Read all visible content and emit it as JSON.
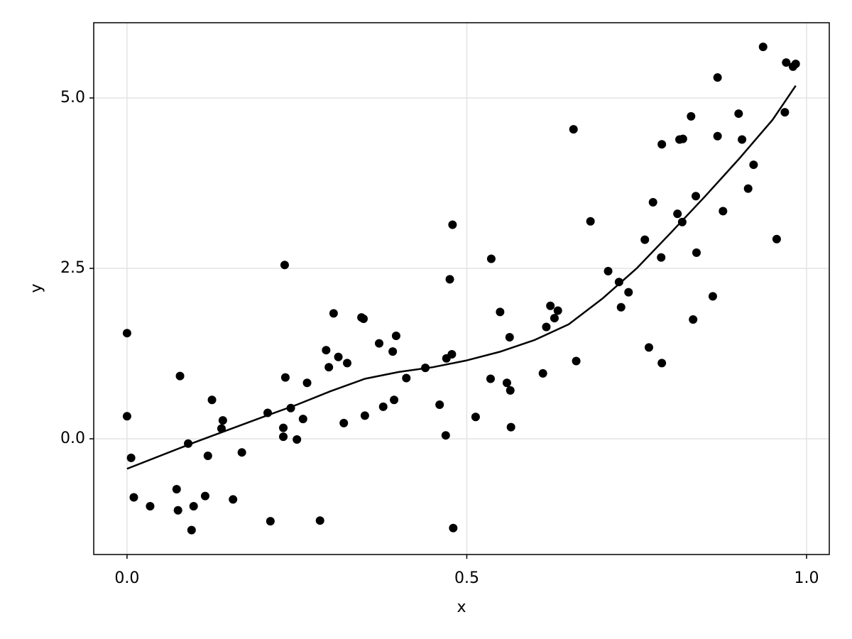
{
  "chart_data": {
    "type": "scatter",
    "x_label": "x",
    "y_label": "y",
    "xlim": [
      -0.049,
      1.0334
    ],
    "ylim": [
      -1.698,
      6.104
    ],
    "xticks": [
      {
        "value": 0,
        "label": "0.0"
      },
      0.5,
      {
        "value": 1,
        "label": "1.0"
      }
    ],
    "yticks": [
      {
        "value": 0,
        "label": "0.0"
      },
      2.5,
      {
        "value": 5,
        "label": "5.0"
      }
    ],
    "grid": true,
    "series": [
      {
        "type": "scatter",
        "color": "#000000",
        "x": [
          0,
          0,
          0.006,
          0.01,
          0.034,
          0.073,
          0.075,
          0.078,
          0.09,
          0.095,
          0.098,
          0.115,
          0.119,
          0.125,
          0.139,
          0.141,
          0.156,
          0.169,
          0.207,
          0.211,
          0.23,
          0.23,
          0.232,
          0.233,
          0.241,
          0.25,
          0.259,
          0.265,
          0.284,
          0.293,
          0.297,
          0.304,
          0.311,
          0.319,
          0.324,
          0.345,
          0.348,
          0.35,
          0.371,
          0.377,
          0.391,
          0.393,
          0.396,
          0.411,
          0.439,
          0.46,
          0.469,
          0.47,
          0.475,
          0.478,
          0.479,
          0.48,
          0.513,
          0.535,
          0.536,
          0.549,
          0.559,
          0.563,
          0.564,
          0.565,
          0.612,
          0.617,
          0.623,
          0.629,
          0.634,
          0.657,
          0.661,
          0.682,
          0.708,
          0.724,
          0.727,
          0.738,
          0.762,
          0.768,
          0.774,
          0.786,
          0.787,
          0.787,
          0.81,
          0.813,
          0.818,
          0.817,
          0.83,
          0.833,
          0.837,
          0.838,
          0.862,
          0.869,
          0.869,
          0.877,
          0.9,
          0.905,
          0.914,
          0.922,
          0.936,
          0.956,
          0.968,
          0.97,
          0.98,
          0.984
        ],
        "values": [
          1.55,
          0.33,
          -0.28,
          -0.86,
          -0.99,
          -0.74,
          -1.05,
          0.92,
          -0.07,
          -1.34,
          -0.99,
          -0.84,
          -0.25,
          0.57,
          0.15,
          0.27,
          -0.89,
          -0.2,
          0.38,
          -1.21,
          0.16,
          0.03,
          2.55,
          0.9,
          0.45,
          -0.01,
          0.29,
          0.82,
          -1.2,
          1.3,
          1.05,
          1.84,
          1.2,
          0.23,
          1.11,
          1.78,
          1.76,
          0.34,
          1.4,
          0.47,
          1.28,
          0.57,
          1.51,
          0.89,
          1.04,
          0.5,
          0.05,
          1.18,
          2.34,
          1.24,
          3.14,
          -1.31,
          0.32,
          0.88,
          2.64,
          1.86,
          0.82,
          1.49,
          0.71,
          0.17,
          0.96,
          1.64,
          1.95,
          1.77,
          1.88,
          4.54,
          1.14,
          3.19,
          2.46,
          2.3,
          1.93,
          2.15,
          2.92,
          1.34,
          3.47,
          2.66,
          4.32,
          1.11,
          3.3,
          4.39,
          4.4,
          3.18,
          4.73,
          1.75,
          3.56,
          2.73,
          2.09,
          5.3,
          4.44,
          3.34,
          4.77,
          4.39,
          3.67,
          4.02,
          5.75,
          2.93,
          4.79,
          5.52,
          5.46,
          5.5
        ]
      },
      {
        "type": "line",
        "color": "#000000",
        "x": [
          0,
          0.1,
          0.2,
          0.25,
          0.3,
          0.35,
          0.4,
          0.45,
          0.5,
          0.55,
          0.6,
          0.65,
          0.7,
          0.75,
          0.8,
          0.85,
          0.9,
          0.95,
          0.984
        ],
        "values": [
          -0.44,
          -0.05,
          0.32,
          0.5,
          0.7,
          0.88,
          0.98,
          1.05,
          1.15,
          1.28,
          1.45,
          1.68,
          2.06,
          2.5,
          3.02,
          3.55,
          4.1,
          4.68,
          5.18
        ]
      }
    ]
  }
}
